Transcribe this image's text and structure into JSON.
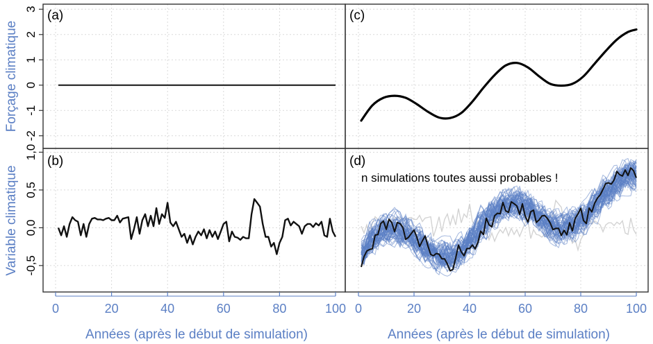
{
  "colors": {
    "accent": "#5b7fc4",
    "ensemble": "#5b7fc4",
    "faint": "#d3d3d3",
    "series": "#000000",
    "grid": "#d9d9d9"
  },
  "chart_data": [
    {
      "panel": "(a)",
      "type": "line",
      "ylabel": "Forçage climatique",
      "xlim": [
        0,
        100
      ],
      "ylim": [
        -2.5,
        3.2
      ],
      "yticks": [
        {
          "v": 3,
          "label": "3"
        },
        {
          "v": 2,
          "label": "2"
        },
        {
          "v": 1,
          "label": "1"
        },
        {
          "v": 0,
          "label": "0"
        },
        {
          "v": -1,
          "label": "-1"
        },
        {
          "v": -2,
          "label": "-2"
        }
      ],
      "grid": true,
      "series": [
        {
          "x": [
            1,
            100
          ],
          "y": [
            0,
            0
          ]
        }
      ]
    },
    {
      "panel": "(b)",
      "type": "line",
      "ylabel": "Variable climatique",
      "xlabel": "Années (après le début de simulation)",
      "xlim": [
        0,
        100
      ],
      "ylim": [
        -0.85,
        1.05
      ],
      "yticks": [
        {
          "v": 1.0,
          "label": "1,0"
        },
        {
          "v": 0.5,
          "label": "0,5"
        },
        {
          "v": 0.0,
          "label": "0,0"
        },
        {
          "v": -0.5,
          "label": "-0,5"
        }
      ],
      "xticks": [
        {
          "v": 0,
          "label": "0"
        },
        {
          "v": 20,
          "label": "20"
        },
        {
          "v": 40,
          "label": "40"
        },
        {
          "v": 60,
          "label": "60"
        },
        {
          "v": 80,
          "label": "80"
        },
        {
          "v": 100,
          "label": "100"
        }
      ],
      "grid": true,
      "series": [
        {
          "x": [
            1,
            2,
            3,
            4,
            5,
            6,
            7,
            8,
            9,
            10,
            11,
            12,
            13,
            14,
            15,
            16,
            17,
            18,
            19,
            20,
            21,
            22,
            23,
            24,
            25,
            26,
            27,
            28,
            29,
            30,
            31,
            32,
            33,
            34,
            35,
            36,
            37,
            38,
            39,
            40,
            41,
            42,
            43,
            44,
            45,
            46,
            47,
            48,
            49,
            50,
            51,
            52,
            53,
            54,
            55,
            56,
            57,
            58,
            59,
            60,
            61,
            62,
            63,
            64,
            65,
            66,
            67,
            68,
            69,
            70,
            71,
            72,
            73,
            74,
            75,
            76,
            77,
            78,
            79,
            80,
            81,
            82,
            83,
            84,
            85,
            86,
            87,
            88,
            89,
            90,
            91,
            92,
            93,
            94,
            95,
            96,
            97,
            98,
            99,
            100
          ],
          "y": [
            0.0,
            -0.1,
            0.02,
            -0.12,
            0.05,
            0.14,
            0.1,
            0.08,
            -0.1,
            0.05,
            -0.12,
            0.05,
            0.12,
            0.13,
            0.11,
            0.11,
            0.1,
            0.12,
            0.13,
            0.1,
            0.1,
            0.16,
            0.07,
            0.12,
            0.13,
            0.14,
            -0.15,
            -0.02,
            0.14,
            -0.08,
            0.1,
            0.18,
            0.02,
            0.16,
            0.02,
            0.26,
            0.05,
            0.18,
            0.13,
            0.33,
            0.07,
            0.02,
            0.08,
            -0.02,
            -0.12,
            -0.08,
            -0.2,
            -0.1,
            -0.22,
            -0.12,
            -0.05,
            -0.1,
            -0.02,
            -0.14,
            -0.03,
            -0.12,
            -0.05,
            -0.15,
            -0.05,
            0.05,
            0.08,
            -0.18,
            -0.05,
            -0.12,
            -0.13,
            -0.16,
            -0.12,
            -0.14,
            -0.14,
            0.18,
            0.38,
            0.33,
            0.28,
            0.05,
            -0.12,
            -0.12,
            -0.25,
            -0.2,
            -0.35,
            -0.2,
            -0.12,
            0.1,
            0.12,
            0.03,
            0.08,
            0.05,
            0.02,
            -0.08,
            0.02,
            0.05,
            0.05,
            0.01,
            0.06,
            0.03,
            0.08,
            -0.1,
            -0.12,
            0.12,
            -0.05,
            -0.12
          ]
        }
      ]
    },
    {
      "panel": "(c)",
      "type": "line",
      "xlim": [
        0,
        100
      ],
      "ylim": [
        -2.5,
        3.2
      ],
      "grid": true,
      "series": [
        {
          "x": [
            1,
            5,
            9,
            13,
            17,
            21,
            25,
            29,
            33,
            37,
            41,
            45,
            49,
            53,
            57,
            61,
            65,
            69,
            73,
            77,
            81,
            85,
            89,
            93,
            97,
            100
          ],
          "y": [
            -1.4,
            -0.8,
            -0.5,
            -0.42,
            -0.5,
            -0.75,
            -1.05,
            -1.28,
            -1.3,
            -1.1,
            -0.65,
            -0.1,
            0.4,
            0.78,
            0.88,
            0.7,
            0.35,
            0.05,
            -0.02,
            0.05,
            0.35,
            0.85,
            1.35,
            1.8,
            2.1,
            2.2
          ]
        }
      ]
    },
    {
      "panel": "(d)",
      "type": "line",
      "xlabel": "Années (après le début de simulation)",
      "annotation": "n simulations toutes aussi probables !",
      "xlim": [
        0,
        100
      ],
      "ylim": [
        -0.85,
        1.05
      ],
      "xticks": [
        {
          "v": 0,
          "label": "0"
        },
        {
          "v": 20,
          "label": "20"
        },
        {
          "v": 40,
          "label": "40"
        },
        {
          "v": 60,
          "label": "60"
        },
        {
          "v": 80,
          "label": "80"
        },
        {
          "v": 100,
          "label": "100"
        }
      ],
      "grid": true,
      "ensemble_members": 60,
      "ensemble_spread": 0.18,
      "series": [
        {
          "x": [
            1,
            5,
            9,
            13,
            17,
            21,
            25,
            29,
            33,
            37,
            41,
            45,
            49,
            53,
            57,
            61,
            65,
            69,
            73,
            77,
            81,
            85,
            89,
            93,
            97,
            100
          ],
          "y": [
            -0.35,
            -0.12,
            -0.02,
            0.0,
            -0.05,
            -0.17,
            -0.28,
            -0.37,
            -0.38,
            -0.3,
            -0.12,
            0.07,
            0.22,
            0.32,
            0.34,
            0.28,
            0.16,
            0.04,
            0.0,
            0.03,
            0.14,
            0.3,
            0.46,
            0.6,
            0.7,
            0.72
          ]
        }
      ]
    }
  ]
}
